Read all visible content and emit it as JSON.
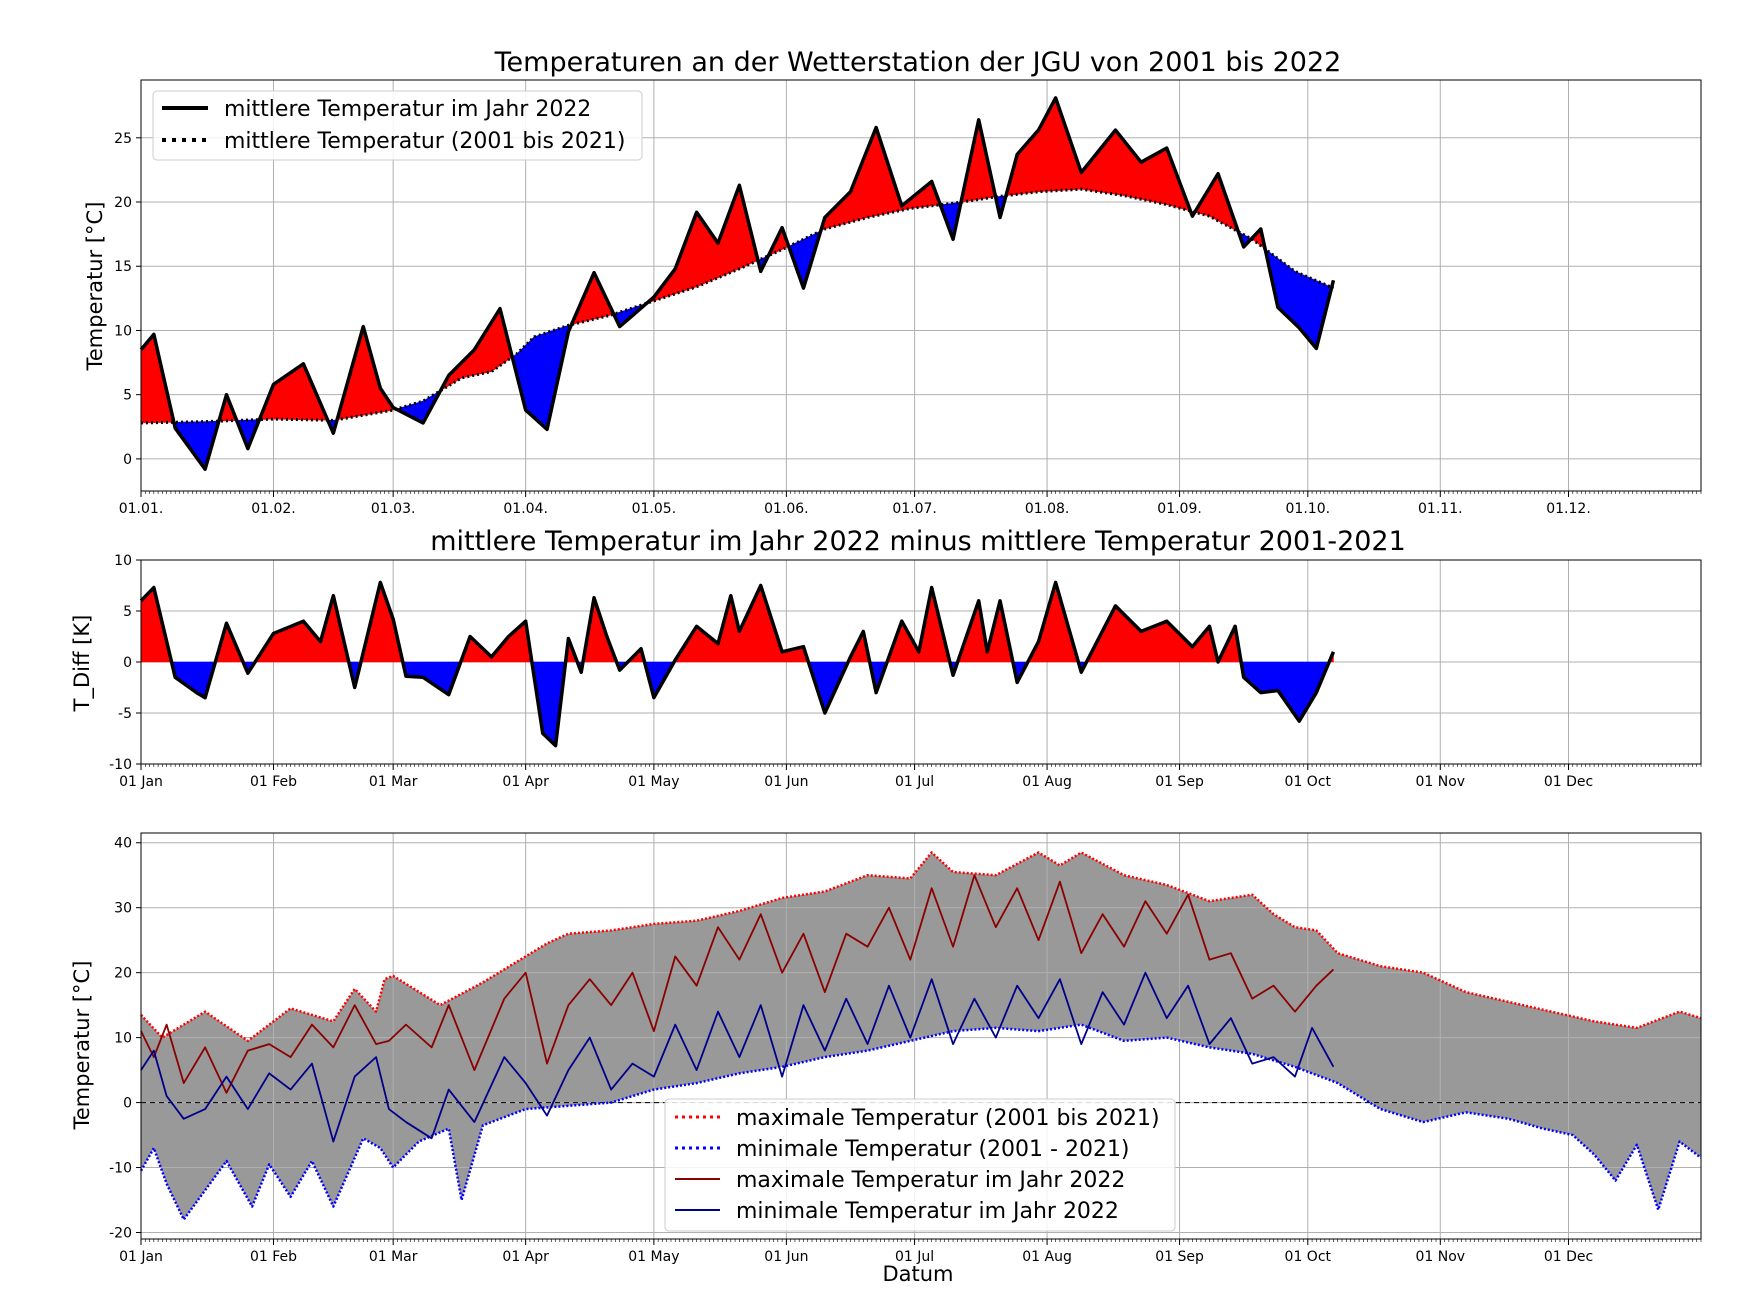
{
  "chart_data": [
    {
      "type": "line",
      "title": "Temperaturen an der Wetterstation der JGU von 2001 bis 2022",
      "xlabel": "",
      "ylabel": "Temperatur [°C]",
      "x_tick_labels": [
        "01.01.",
        "01.02.",
        "01.03.",
        "01.04.",
        "01.05.",
        "01.06.",
        "01.07.",
        "01.08.",
        "01.09.",
        "01.10.",
        "01.11.",
        "01.12."
      ],
      "y_ticks": [
        0,
        5,
        10,
        15,
        20,
        25
      ],
      "xlim_day": [
        0,
        365
      ],
      "ylim": [
        -2.5,
        29.5
      ],
      "grid": true,
      "legend_position": "top-left",
      "fill": {
        "above_color": "#ff0000",
        "below_color": "#0000ff"
      },
      "series": [
        {
          "name": "mittlere Temperatur im Jahr 2022",
          "style": "solid",
          "color": "#000000",
          "day": [
            0,
            3,
            8,
            15,
            20,
            25,
            31,
            38,
            45,
            52,
            56,
            59,
            66,
            72,
            78,
            84,
            90,
            95,
            100,
            106,
            112,
            120,
            125,
            130,
            135,
            140,
            145,
            150,
            155,
            160,
            166,
            172,
            178,
            185,
            190,
            196,
            201,
            205,
            210,
            214,
            220,
            228,
            234,
            240,
            246,
            252,
            258,
            262,
            266,
            271,
            275,
            279
          ],
          "values": [
            8.5,
            9.7,
            2.4,
            -0.8,
            5.0,
            0.8,
            5.8,
            7.4,
            2.0,
            10.3,
            5.5,
            4.0,
            2.8,
            6.5,
            8.5,
            11.7,
            3.8,
            2.3,
            9.9,
            14.5,
            10.3,
            12.6,
            14.8,
            19.2,
            16.8,
            21.3,
            14.6,
            18.0,
            13.3,
            18.8,
            20.8,
            25.8,
            19.7,
            21.6,
            17.1,
            26.4,
            18.8,
            23.7,
            25.6,
            28.1,
            22.3,
            25.6,
            23.1,
            24.2,
            18.9,
            22.2,
            16.5,
            17.9,
            11.8,
            10.2,
            8.6,
            13.9
          ]
        },
        {
          "name": "mittlere Temperatur (2001 bis 2021)",
          "style": "dotted",
          "color": "#000000",
          "day": [
            0,
            15,
            31,
            45,
            59,
            66,
            75,
            82,
            88,
            92,
            100,
            110,
            120,
            130,
            140,
            150,
            160,
            170,
            180,
            190,
            200,
            210,
            220,
            230,
            240,
            250,
            260,
            270,
            279
          ],
          "values": [
            2.8,
            2.9,
            3.1,
            3.0,
            3.8,
            4.5,
            6.3,
            6.8,
            8.2,
            9.5,
            10.4,
            11.2,
            12.3,
            13.4,
            14.8,
            16.3,
            17.9,
            18.8,
            19.5,
            19.9,
            20.4,
            20.8,
            21.0,
            20.5,
            19.8,
            18.9,
            17.1,
            14.6,
            13.3
          ]
        }
      ]
    },
    {
      "type": "area",
      "title": "mittlere Temperatur im Jahr 2022 minus mittlere Temperatur 2001-2021",
      "xlabel": "",
      "ylabel": "T_Diff [K]",
      "x_tick_labels": [
        "01 Jan",
        "01 Feb",
        "01 Mar",
        "01 Apr",
        "01 May",
        "01 Jun",
        "01 Jul",
        "01 Aug",
        "01 Sep",
        "01 Oct",
        "01 Nov",
        "01 Dec"
      ],
      "y_ticks": [
        -10,
        -5,
        0,
        5,
        10
      ],
      "xlim_day": [
        0,
        365
      ],
      "ylim": [
        -10,
        10
      ],
      "grid": true,
      "fill": {
        "above_color": "#ff0000",
        "below_color": "#0000ff"
      },
      "series": [
        {
          "name": "",
          "color": "#000000",
          "day": [
            0,
            3,
            8,
            13,
            15,
            20,
            25,
            31,
            38,
            42,
            45,
            50,
            56,
            59,
            62,
            66,
            72,
            77,
            82,
            86,
            90,
            94,
            97,
            100,
            103,
            106,
            109,
            112,
            117,
            120,
            125,
            130,
            135,
            138,
            140,
            145,
            150,
            155,
            160,
            166,
            169,
            172,
            178,
            182,
            185,
            190,
            196,
            198,
            201,
            205,
            210,
            214,
            220,
            228,
            234,
            240,
            246,
            250,
            252,
            256,
            258,
            262,
            266,
            271,
            275,
            279
          ],
          "values": [
            6.0,
            7.3,
            -1.5,
            -3.0,
            -3.5,
            3.8,
            -1.1,
            2.8,
            4.0,
            2.0,
            6.5,
            -2.5,
            7.8,
            4.2,
            -1.4,
            -1.5,
            -3.2,
            2.5,
            0.5,
            2.5,
            4.0,
            -7.0,
            -8.2,
            2.3,
            -1.0,
            6.3,
            2.5,
            -0.8,
            1.3,
            -3.5,
            0.2,
            3.5,
            1.8,
            6.5,
            3.0,
            7.5,
            1.0,
            1.5,
            -5.0,
            0.5,
            3.0,
            -3.0,
            4.0,
            1.0,
            7.3,
            -1.3,
            6.0,
            1.0,
            6.0,
            -2.0,
            2.0,
            7.8,
            -1.0,
            5.5,
            3.0,
            4.0,
            1.5,
            3.5,
            0.0,
            3.5,
            -1.5,
            -3.0,
            -2.8,
            -5.8,
            -3.0,
            1.0
          ]
        }
      ]
    },
    {
      "type": "line",
      "title": "",
      "xlabel": "Datum",
      "ylabel": "Temperatur [°C]",
      "x_tick_labels": [
        "01 Jan",
        "01 Feb",
        "01 Mar",
        "01 Apr",
        "01 May",
        "01 Jun",
        "01 Jul",
        "01 Aug",
        "01 Sep",
        "01 Oct",
        "01 Nov",
        "01 Dec"
      ],
      "y_ticks": [
        -20,
        -10,
        0,
        10,
        20,
        30,
        40
      ],
      "xlim_day": [
        0,
        365
      ],
      "ylim": [
        -21,
        41.5
      ],
      "grid": true,
      "legend_position": "lower-center",
      "band_color": "#999999",
      "zero_line": true,
      "series": [
        {
          "name": "maximale Temperatur (2001 bis 2021)",
          "style": "dotted",
          "color": "#ff0000",
          "day": [
            0,
            5,
            15,
            25,
            35,
            45,
            50,
            55,
            57,
            59,
            70,
            80,
            90,
            95,
            100,
            110,
            120,
            130,
            140,
            150,
            160,
            170,
            180,
            185,
            190,
            200,
            210,
            215,
            220,
            230,
            240,
            250,
            260,
            265,
            270,
            275,
            280,
            290,
            300,
            310,
            320,
            330,
            340,
            350,
            360,
            365
          ],
          "values": [
            13.5,
            10.0,
            14.0,
            9.5,
            14.5,
            12.5,
            17.5,
            14.0,
            19.0,
            19.5,
            15.0,
            18.5,
            22.5,
            24.5,
            26.0,
            26.5,
            27.5,
            28.0,
            29.5,
            31.5,
            32.5,
            35.0,
            34.5,
            38.5,
            35.5,
            35.0,
            38.5,
            36.5,
            38.5,
            35.0,
            33.5,
            31.0,
            32.0,
            29.0,
            27.0,
            26.5,
            23.0,
            21.0,
            20.0,
            17.0,
            15.5,
            14.0,
            12.5,
            11.5,
            14.0,
            13.0
          ]
        },
        {
          "name": "minimale Temperatur (2001 - 2021)",
          "style": "dotted",
          "color": "#0000ff",
          "day": [
            0,
            3,
            6,
            10,
            20,
            26,
            30,
            35,
            40,
            45,
            52,
            56,
            59,
            65,
            72,
            75,
            80,
            90,
            100,
            110,
            120,
            130,
            140,
            150,
            160,
            170,
            180,
            190,
            200,
            210,
            220,
            230,
            240,
            250,
            260,
            270,
            280,
            290,
            300,
            310,
            320,
            328,
            335,
            340,
            345,
            350,
            355,
            360,
            365
          ],
          "values": [
            -10.5,
            -7.0,
            -12.5,
            -18.0,
            -9.0,
            -16.0,
            -9.5,
            -14.5,
            -9.0,
            -16.0,
            -5.5,
            -7.0,
            -10.0,
            -6.0,
            -4.0,
            -15.0,
            -3.5,
            -1.0,
            -0.5,
            0.0,
            2.0,
            3.0,
            4.5,
            5.5,
            7.0,
            8.0,
            9.5,
            11.0,
            11.5,
            11.0,
            12.0,
            9.5,
            10.0,
            8.5,
            7.5,
            5.5,
            3.0,
            -1.0,
            -3.0,
            -1.5,
            -2.5,
            -4.0,
            -5.0,
            -8.0,
            -12.0,
            -6.5,
            -16.5,
            -6.0,
            -8.5
          ]
        },
        {
          "name": "maximale Temperatur im Jahr 2022",
          "style": "solid",
          "color": "#8b0000",
          "day": [
            0,
            3,
            6,
            10,
            15,
            20,
            25,
            30,
            35,
            40,
            45,
            50,
            55,
            58,
            62,
            68,
            72,
            78,
            85,
            90,
            95,
            100,
            105,
            110,
            115,
            120,
            125,
            130,
            135,
            140,
            145,
            150,
            155,
            160,
            165,
            170,
            175,
            180,
            185,
            190,
            195,
            200,
            205,
            210,
            215,
            220,
            225,
            230,
            235,
            240,
            245,
            250,
            255,
            260,
            265,
            270,
            275,
            279
          ],
          "values": [
            11.0,
            7.0,
            12.0,
            3.0,
            8.5,
            1.5,
            8.0,
            9.0,
            7.0,
            12.0,
            8.5,
            15.0,
            9.0,
            9.5,
            12.0,
            8.5,
            15.0,
            5.0,
            16.0,
            20.0,
            6.0,
            15.0,
            19.0,
            15.0,
            20.0,
            11.0,
            22.5,
            18.0,
            27.0,
            22.0,
            29.0,
            20.0,
            26.0,
            17.0,
            26.0,
            24.0,
            30.0,
            22.0,
            33.0,
            24.0,
            35.0,
            27.0,
            33.0,
            25.0,
            34.0,
            23.0,
            29.0,
            24.0,
            31.0,
            26.0,
            32.0,
            22.0,
            23.0,
            16.0,
            18.0,
            14.0,
            18.0,
            20.5
          ]
        },
        {
          "name": "minimale Temperatur im Jahr 2022",
          "style": "solid",
          "color": "#00008b",
          "day": [
            0,
            3,
            6,
            10,
            15,
            20,
            25,
            30,
            35,
            40,
            45,
            50,
            55,
            58,
            62,
            68,
            72,
            78,
            85,
            90,
            95,
            100,
            105,
            110,
            115,
            120,
            125,
            130,
            135,
            140,
            145,
            150,
            155,
            160,
            165,
            170,
            175,
            180,
            185,
            190,
            195,
            200,
            205,
            210,
            215,
            220,
            225,
            230,
            235,
            240,
            245,
            250,
            255,
            260,
            265,
            270,
            274,
            279
          ],
          "values": [
            5.0,
            8.0,
            1.0,
            -2.5,
            -1.0,
            4.0,
            -1.0,
            4.5,
            2.0,
            6.0,
            -6.0,
            4.0,
            7.0,
            -1.0,
            -3.0,
            -5.5,
            2.0,
            -3.0,
            7.0,
            3.0,
            -2.0,
            5.0,
            10.0,
            2.0,
            6.0,
            4.0,
            12.0,
            5.0,
            14.0,
            7.0,
            15.0,
            4.0,
            15.0,
            8.0,
            16.0,
            9.0,
            18.0,
            10.0,
            19.0,
            9.0,
            16.0,
            10.0,
            18.0,
            13.0,
            19.0,
            9.0,
            17.0,
            12.0,
            20.0,
            13.0,
            18.0,
            9.0,
            13.0,
            6.0,
            7.0,
            4.0,
            11.5,
            5.5
          ]
        }
      ]
    }
  ]
}
